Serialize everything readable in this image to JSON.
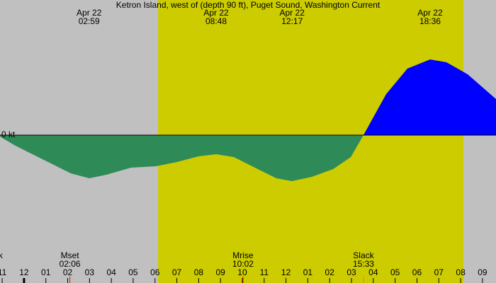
{
  "chart_data": {
    "type": "area",
    "title": "Ketron Island, west of (depth 90 ft), Puget Sound, Washington Current",
    "y_label": "0 kt",
    "xlim": [
      -1.1,
      21.62
    ],
    "ylim": [
      -4.18,
      3.82
    ],
    "daylight": [
      6.14,
      20.13
    ],
    "xticks": [
      {
        "value": -1,
        "label": "11"
      },
      {
        "value": 0,
        "label": "12"
      },
      {
        "value": 1,
        "label": "01"
      },
      {
        "value": 2,
        "label": "02"
      },
      {
        "value": 3,
        "label": "03"
      },
      {
        "value": 4,
        "label": "04"
      },
      {
        "value": 5,
        "label": "05"
      },
      {
        "value": 6,
        "label": "06"
      },
      {
        "value": 7,
        "label": "07"
      },
      {
        "value": 8,
        "label": "08"
      },
      {
        "value": 9,
        "label": "09"
      },
      {
        "value": 10,
        "label": "10"
      },
      {
        "value": 11,
        "label": "11"
      },
      {
        "value": 12,
        "label": "12"
      },
      {
        "value": 13,
        "label": "01"
      },
      {
        "value": 14,
        "label": "02"
      },
      {
        "value": 15,
        "label": "03"
      },
      {
        "value": 16,
        "label": "04"
      },
      {
        "value": 17,
        "label": "05"
      },
      {
        "value": 18,
        "label": "06"
      },
      {
        "value": 19,
        "label": "07"
      },
      {
        "value": 20,
        "label": "08"
      },
      {
        "value": 21,
        "label": "09"
      }
    ],
    "top_events": [
      {
        "date": "Apr 22",
        "time": "02:59",
        "x": 2.98
      },
      {
        "date": "Apr 22",
        "time": "08:48",
        "x": 8.8
      },
      {
        "date": "Apr 22",
        "time": "12:17",
        "x": 12.28
      },
      {
        "date": "Apr 22",
        "time": "18:36",
        "x": 18.6
      }
    ],
    "bottom_events": [
      {
        "name": "Slack",
        "x": -1.45
      },
      {
        "name": "Mset",
        "time": "02:06",
        "x": 2.1,
        "color": "#ff0000"
      },
      {
        "name": "Mrise",
        "time": "10:02",
        "x": 10.03,
        "color": "#ff0000"
      },
      {
        "name": "Slack",
        "time": "15:33",
        "x": 15.55,
        "color": "#ff8000"
      }
    ],
    "series": [
      {
        "color": "#2e8b57",
        "x": [
          -1.1,
          -0.45,
          0.19,
          1.17,
          2.14,
          2.99,
          3.77,
          4.9,
          6.04,
          7.01,
          7.99,
          8.8,
          9.61,
          10.58,
          11.56,
          12.27,
          13.18,
          14.16,
          14.97,
          15.55
        ],
        "values": [
          -0.04,
          -0.28,
          -0.48,
          -0.78,
          -1.08,
          -1.22,
          -1.12,
          -0.92,
          -0.88,
          -0.76,
          -0.6,
          -0.54,
          -0.62,
          -0.92,
          -1.22,
          -1.3,
          -1.18,
          -0.96,
          -0.62,
          0
        ]
      },
      {
        "color": "#0000ff",
        "x": [
          15.55,
          16.59,
          17.56,
          18.6,
          19.35,
          20.32,
          21.62
        ],
        "values": [
          0,
          1.16,
          1.88,
          2.14,
          2.06,
          1.72,
          1.02
        ]
      }
    ]
  }
}
